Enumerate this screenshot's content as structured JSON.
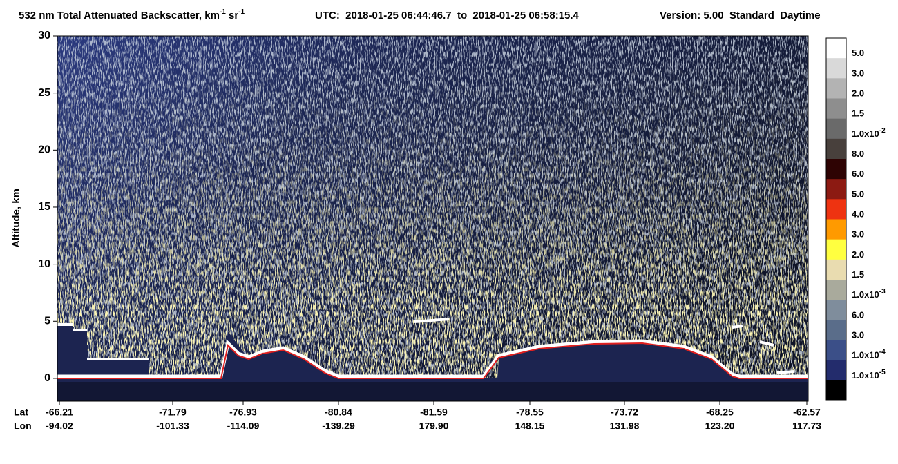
{
  "chart_data": {
    "type": "curtain",
    "title": {
      "quantity": "532 nm Total Attenuated Backscatter, km",
      "unit_exp1": "-1",
      "unit_sr": " sr",
      "unit_exp2": "-1",
      "utc": "UTC:  2018-01-25 06:44:46.7  to  2018-01-25 06:58:15.4",
      "version": "Version: 5.00  Standard  Daytime"
    },
    "y_label": "Altitude, km",
    "ylim": [
      -2,
      30
    ],
    "yticks": [
      0,
      5,
      10,
      15,
      20,
      25,
      30
    ],
    "x_row_labels": [
      "Lat",
      "Lon"
    ],
    "lat": [
      "-66.21",
      "-71.79",
      "-76.93",
      "-80.84",
      "-81.59",
      "-78.55",
      "-73.72",
      "-68.25",
      "-62.57"
    ],
    "lon": [
      "-94.02",
      "-101.33",
      "-114.09",
      "-139.29",
      "179.90",
      "148.15",
      "131.98",
      "123.20",
      "117.73"
    ],
    "colorbar": {
      "colors": [
        "#ffffff",
        "#d9d9d9",
        "#b3b3b3",
        "#8e8e8e",
        "#6a6a6a",
        "#48403c",
        "#2e0303",
        "#8c1a12",
        "#ee3311",
        "#ff9a00",
        "#ffff40",
        "#e9dcb0",
        "#a9aa9c",
        "#7f8d9c",
        "#5a6d8a",
        "#3b4f88",
        "#232c6c",
        "#000000"
      ],
      "labels": [
        {
          "text": "5.0"
        },
        {
          "text": "3.0"
        },
        {
          "text": "2.0"
        },
        {
          "text": "1.5"
        },
        {
          "text": "1.0x10",
          "sup": "-2"
        },
        {
          "text": "8.0"
        },
        {
          "text": "6.0"
        },
        {
          "text": "5.0"
        },
        {
          "text": "4.0"
        },
        {
          "text": "3.0"
        },
        {
          "text": "2.0"
        },
        {
          "text": "1.5"
        },
        {
          "text": "1.0x10",
          "sup": "-3"
        },
        {
          "text": "6.0"
        },
        {
          "text": "3.0"
        },
        {
          "text": "1.0x10",
          "sup": "-4"
        },
        {
          "text": "1.0x10",
          "sup": "-5"
        }
      ]
    }
  }
}
